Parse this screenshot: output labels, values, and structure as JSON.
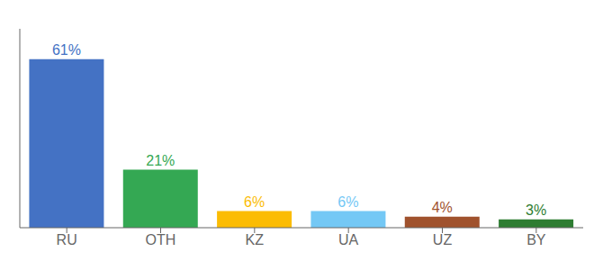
{
  "chart_data": {
    "type": "bar",
    "categories": [
      "RU",
      "OTH",
      "KZ",
      "UA",
      "UZ",
      "BY"
    ],
    "values": [
      61,
      21,
      6,
      6,
      4,
      3
    ],
    "value_labels": [
      "61%",
      "21%",
      "6%",
      "6%",
      "4%",
      "3%"
    ],
    "colors": [
      "#4472c4",
      "#34a853",
      "#fbbc04",
      "#74c8f5",
      "#a0522d",
      "#2e7d32"
    ],
    "ylim": [
      0,
      72
    ],
    "data_labels": true,
    "tick_labels": "x",
    "grid": false
  }
}
